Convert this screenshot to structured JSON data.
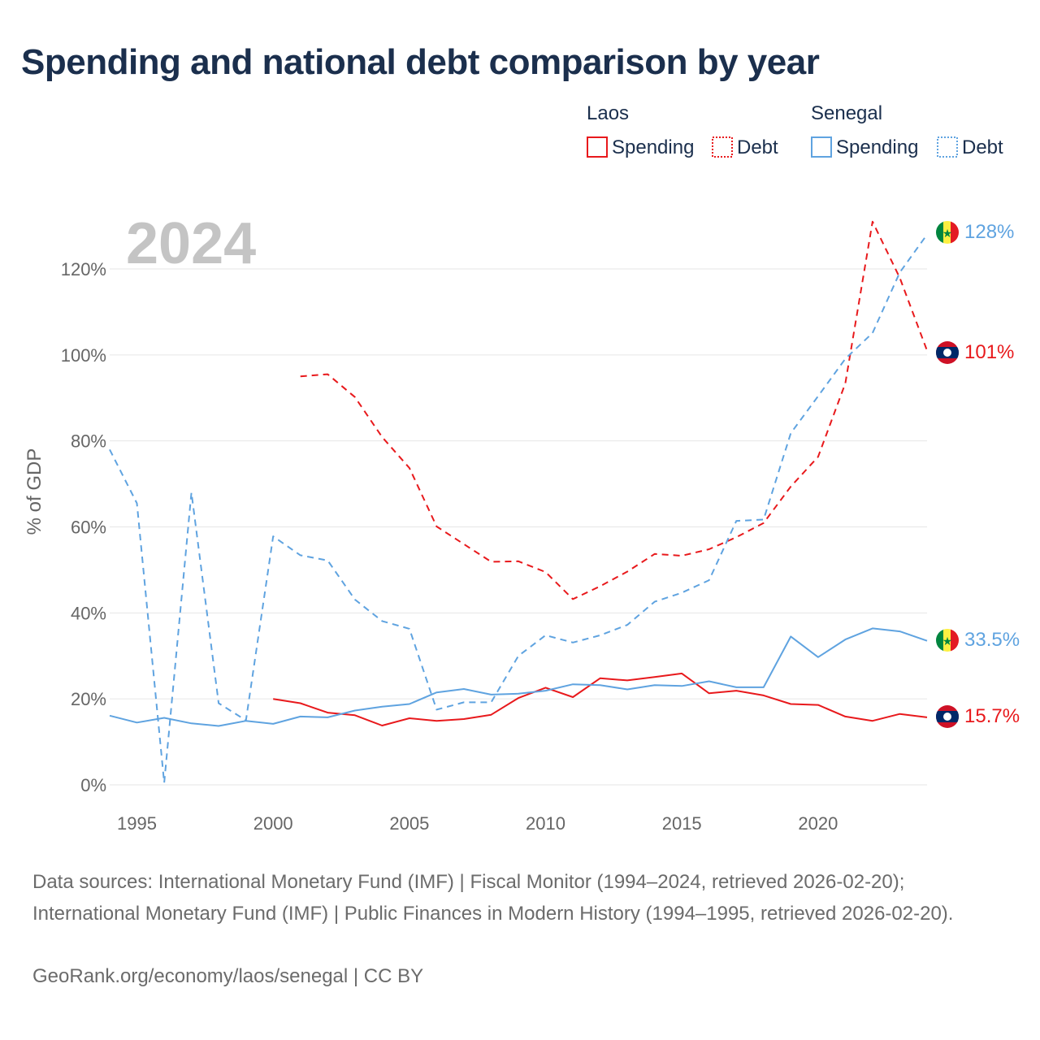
{
  "title": "Spending and national debt comparison by year",
  "year_label": "2024",
  "colors": {
    "laos": "#e8191c",
    "senegal": "#5fa3e0",
    "grid": "#e6e6e6",
    "year": "#c4c4c4"
  },
  "legend": {
    "groups": [
      {
        "name": "Laos",
        "items": [
          "Spending",
          "Debt"
        ]
      },
      {
        "name": "Senegal",
        "items": [
          "Spending",
          "Debt"
        ]
      }
    ]
  },
  "end_labels": {
    "senegal_debt": "128%",
    "laos_debt": "101%",
    "senegal_spending": "33.5%",
    "laos_spending": "15.7%"
  },
  "sources": "Data sources: International Monetary Fund (IMF) | Fiscal Monitor (1994–2024, retrieved 2026-02-20); International Monetary Fund (IMF) | Public Finances in Modern History (1994–1995, retrieved 2026-02-20).",
  "credit": "GeoRank.org/economy/laos/senegal | CC BY",
  "chart_data": {
    "type": "line",
    "title": "Spending and national debt comparison by year",
    "ylabel": "% of GDP",
    "xlabel": "",
    "xlim": [
      1994,
      2024
    ],
    "ylim": [
      0,
      130
    ],
    "x_ticks": [
      1995,
      2000,
      2005,
      2010,
      2015,
      2020
    ],
    "y_ticks": [
      0,
      20,
      40,
      60,
      80,
      100,
      120
    ],
    "y_tick_labels": [
      "0%",
      "20%",
      "40%",
      "60%",
      "80%",
      "100%",
      "120%"
    ],
    "series": [
      {
        "name": "Laos Spending",
        "country": "laos",
        "style": "solid",
        "x": [
          2000,
          2001,
          2002,
          2003,
          2004,
          2005,
          2006,
          2007,
          2008,
          2009,
          2010,
          2011,
          2012,
          2013,
          2014,
          2015,
          2016,
          2017,
          2018,
          2019,
          2020,
          2021,
          2022,
          2023,
          2024
        ],
        "values": [
          20.0,
          19.0,
          16.8,
          16.2,
          13.8,
          15.5,
          14.9,
          15.3,
          16.3,
          20.2,
          22.6,
          20.4,
          24.8,
          24.3,
          25.1,
          25.9,
          21.3,
          21.9,
          20.8,
          18.8,
          18.6,
          15.9,
          14.9,
          16.5,
          15.7
        ]
      },
      {
        "name": "Laos Debt",
        "country": "laos",
        "style": "dashed",
        "x": [
          2001,
          2002,
          2003,
          2004,
          2005,
          2006,
          2007,
          2008,
          2009,
          2010,
          2011,
          2012,
          2013,
          2014,
          2015,
          2016,
          2017,
          2018,
          2019,
          2020,
          2021,
          2022,
          2023,
          2024
        ],
        "values": [
          95.0,
          95.5,
          90.2,
          80.9,
          73.7,
          60.1,
          56.0,
          51.9,
          52.0,
          49.5,
          43.2,
          46.2,
          49.6,
          53.7,
          53.3,
          54.8,
          57.6,
          60.9,
          69.4,
          76.3,
          93.4,
          131.0,
          117.9,
          101.0
        ]
      },
      {
        "name": "Senegal Spending",
        "country": "senegal",
        "style": "solid",
        "x": [
          1994,
          1995,
          1996,
          1997,
          1998,
          1999,
          2000,
          2001,
          2002,
          2003,
          2004,
          2005,
          2006,
          2007,
          2008,
          2009,
          2010,
          2011,
          2012,
          2013,
          2014,
          2015,
          2016,
          2017,
          2018,
          2019,
          2020,
          2021,
          2022,
          2023,
          2024
        ],
        "values": [
          16.1,
          14.5,
          15.6,
          14.3,
          13.7,
          14.9,
          14.2,
          15.9,
          15.7,
          17.3,
          18.2,
          18.8,
          21.5,
          22.3,
          21.0,
          21.2,
          21.9,
          23.4,
          23.2,
          22.2,
          23.2,
          23.0,
          24.1,
          22.7,
          22.7,
          34.5,
          29.7,
          33.8,
          36.4,
          35.7,
          33.5
        ]
      },
      {
        "name": "Senegal Debt",
        "country": "senegal",
        "style": "dashed",
        "x": [
          1994,
          1995,
          1996,
          1997,
          1998,
          1999,
          2000,
          2001,
          2002,
          2003,
          2004,
          2005,
          2006,
          2007,
          2008,
          2009,
          2010,
          2011,
          2012,
          2013,
          2014,
          2015,
          2016,
          2017,
          2018,
          2019,
          2020,
          2021,
          2022,
          2023,
          2024
        ],
        "values": [
          78.0,
          65.5,
          0.5,
          68.0,
          19.0,
          15.0,
          57.8,
          53.4,
          52.2,
          43.1,
          38.1,
          36.3,
          17.5,
          19.2,
          19.2,
          30.0,
          34.8,
          33.1,
          34.8,
          37.2,
          42.6,
          44.7,
          47.6,
          61.4,
          61.7,
          81.8,
          90.4,
          99.1,
          105.1,
          119.2,
          128.0
        ]
      }
    ]
  }
}
